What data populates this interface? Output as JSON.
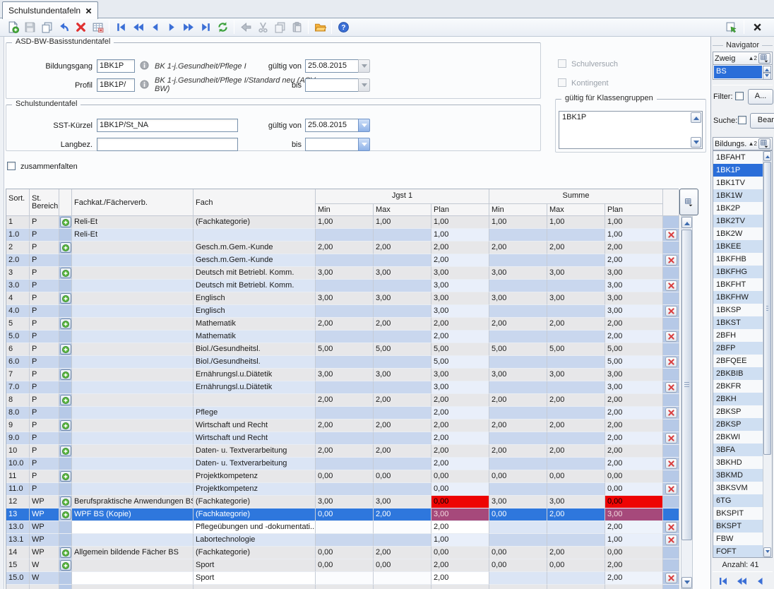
{
  "window": {
    "tab_title": "Schulstundentafeln"
  },
  "toolbar": {
    "icons": [
      {
        "name": "new-record",
        "enabled": true
      },
      {
        "name": "save",
        "enabled": false
      },
      {
        "name": "duplicate",
        "enabled": true
      },
      {
        "name": "undo",
        "enabled": true
      },
      {
        "name": "delete",
        "enabled": true
      },
      {
        "name": "edit-table",
        "enabled": true
      },
      {
        "sep": true
      },
      {
        "name": "nav-first",
        "enabled": true
      },
      {
        "name": "nav-fast-back",
        "enabled": true
      },
      {
        "name": "nav-back",
        "enabled": true
      },
      {
        "name": "nav-forward",
        "enabled": true
      },
      {
        "name": "nav-fast-forward",
        "enabled": true
      },
      {
        "name": "nav-last",
        "enabled": true
      },
      {
        "name": "refresh",
        "enabled": true
      },
      {
        "sep": true
      },
      {
        "name": "assign-back",
        "enabled": false
      },
      {
        "name": "cut",
        "enabled": false
      },
      {
        "name": "copy",
        "enabled": false
      },
      {
        "name": "paste",
        "enabled": false
      },
      {
        "sep": true
      },
      {
        "name": "folder",
        "enabled": true
      },
      {
        "sep": true
      },
      {
        "name": "help",
        "enabled": true
      }
    ],
    "right_icons": [
      {
        "name": "undock",
        "enabled": true
      },
      {
        "sep": true
      },
      {
        "name": "close-window",
        "enabled": true
      }
    ]
  },
  "basis": {
    "legend": "ASD-BW-Basisstundentafel",
    "bildungsgang_label": "Bildungsgang",
    "bildungsgang_value": "1BK1P",
    "bildungsgang_desc": "BK 1-j.Gesundheit/Pflege I",
    "profil_label": "Profil",
    "profil_value": "1BK1P/",
    "profil_desc": "BK 1-j.Gesundheit/Pflege I/Standard neu (ASV-BW)",
    "gueltig_von_label": "gültig von",
    "gueltig_von_value": "25.08.2015",
    "bis_label": "bis",
    "bis_value": "",
    "schulversuch_label": "Schulversuch",
    "kontingent_label": "Kontingent"
  },
  "sst": {
    "legend": "Schulstundentafel",
    "kuerzel_label": "SST-Kürzel",
    "kuerzel_value": "1BK1P/St_NA",
    "langbez_label": "Langbez.",
    "langbez_value": "",
    "gueltig_von_label": "gültig von",
    "gueltig_von_value": "25.08.2015",
    "bis_label": "bis",
    "bis_value": "",
    "klassengruppen_legend": "gültig für Klassengruppen",
    "klassengruppen_items": [
      "1BK1P"
    ]
  },
  "zusammenfalten_label": "zusammenfalten",
  "table": {
    "headers": {
      "sort": "Sort.",
      "bereich_line1": "St.",
      "bereich_line2": "Bereich",
      "fachkat": "Fachkat./Fächerverb.",
      "fach": "Fach",
      "group1": "Jgst 1",
      "group2": "Summe",
      "min": "Min",
      "max": "Max",
      "plan": "Plan"
    },
    "rows": [
      {
        "sort": "1",
        "bereich": "P",
        "plus": true,
        "fachkat": "Reli-Et",
        "fach": "(Fachkategorie)",
        "values": [
          "1,00",
          "1,00",
          "1,00",
          "1,00",
          "1,00",
          "1,00"
        ],
        "kind": "parent",
        "del": false
      },
      {
        "sort": "1.0",
        "bereich": "P",
        "plus": false,
        "fachkat": "Reli-Et",
        "fach": "",
        "values": [
          "",
          "",
          "1,00",
          "",
          "",
          "1,00"
        ],
        "kind": "child",
        "del": true
      },
      {
        "sort": "2",
        "bereich": "P",
        "plus": true,
        "fachkat": "",
        "fach": "Gesch.m.Gem.-Kunde",
        "values": [
          "2,00",
          "2,00",
          "2,00",
          "2,00",
          "2,00",
          "2,00"
        ],
        "kind": "parent",
        "del": false
      },
      {
        "sort": "2.0",
        "bereich": "P",
        "plus": false,
        "fachkat": "",
        "fach": "Gesch.m.Gem.-Kunde",
        "values": [
          "",
          "",
          "2,00",
          "",
          "",
          "2,00"
        ],
        "kind": "child",
        "del": true
      },
      {
        "sort": "3",
        "bereich": "P",
        "plus": true,
        "fachkat": "",
        "fach": "Deutsch mit Betriebl. Komm.",
        "values": [
          "3,00",
          "3,00",
          "3,00",
          "3,00",
          "3,00",
          "3,00"
        ],
        "kind": "parent",
        "del": false
      },
      {
        "sort": "3.0",
        "bereich": "P",
        "plus": false,
        "fachkat": "",
        "fach": "Deutsch mit Betriebl. Komm.",
        "values": [
          "",
          "",
          "3,00",
          "",
          "",
          "3,00"
        ],
        "kind": "child",
        "del": true
      },
      {
        "sort": "4",
        "bereich": "P",
        "plus": true,
        "fachkat": "",
        "fach": "Englisch",
        "values": [
          "3,00",
          "3,00",
          "3,00",
          "3,00",
          "3,00",
          "3,00"
        ],
        "kind": "parent",
        "del": false
      },
      {
        "sort": "4.0",
        "bereich": "P",
        "plus": false,
        "fachkat": "",
        "fach": "Englisch",
        "values": [
          "",
          "",
          "3,00",
          "",
          "",
          "3,00"
        ],
        "kind": "child",
        "del": true
      },
      {
        "sort": "5",
        "bereich": "P",
        "plus": true,
        "fachkat": "",
        "fach": "Mathematik",
        "values": [
          "2,00",
          "2,00",
          "2,00",
          "2,00",
          "2,00",
          "2,00"
        ],
        "kind": "parent",
        "del": false
      },
      {
        "sort": "5.0",
        "bereich": "P",
        "plus": false,
        "fachkat": "",
        "fach": "Mathematik",
        "values": [
          "",
          "",
          "2,00",
          "",
          "",
          "2,00"
        ],
        "kind": "child",
        "del": true
      },
      {
        "sort": "6",
        "bereich": "P",
        "plus": true,
        "fachkat": "",
        "fach": "Biol./Gesundheitsl.",
        "values": [
          "5,00",
          "5,00",
          "5,00",
          "5,00",
          "5,00",
          "5,00"
        ],
        "kind": "parent",
        "del": false
      },
      {
        "sort": "6.0",
        "bereich": "P",
        "plus": false,
        "fachkat": "",
        "fach": "Biol./Gesundheitsl.",
        "values": [
          "",
          "",
          "5,00",
          "",
          "",
          "5,00"
        ],
        "kind": "child",
        "del": true
      },
      {
        "sort": "7",
        "bereich": "P",
        "plus": true,
        "fachkat": "",
        "fach": "Ernährungsl.u.Diätetik",
        "values": [
          "3,00",
          "3,00",
          "3,00",
          "3,00",
          "3,00",
          "3,00"
        ],
        "kind": "parent",
        "del": false
      },
      {
        "sort": "7.0",
        "bereich": "P",
        "plus": false,
        "fachkat": "",
        "fach": "Ernährungsl.u.Diätetik",
        "values": [
          "",
          "",
          "3,00",
          "",
          "",
          "3,00"
        ],
        "kind": "child",
        "del": true
      },
      {
        "sort": "8",
        "bereich": "P",
        "plus": true,
        "fachkat": "",
        "fach": "",
        "values": [
          "2,00",
          "2,00",
          "2,00",
          "2,00",
          "2,00",
          "2,00"
        ],
        "kind": "parent",
        "del": false
      },
      {
        "sort": "8.0",
        "bereich": "P",
        "plus": false,
        "fachkat": "",
        "fach": "Pflege",
        "values": [
          "",
          "",
          "2,00",
          "",
          "",
          "2,00"
        ],
        "kind": "child",
        "del": true
      },
      {
        "sort": "9",
        "bereich": "P",
        "plus": true,
        "fachkat": "",
        "fach": "Wirtschaft und Recht",
        "values": [
          "2,00",
          "2,00",
          "2,00",
          "2,00",
          "2,00",
          "2,00"
        ],
        "kind": "parent",
        "del": false
      },
      {
        "sort": "9.0",
        "bereich": "P",
        "plus": false,
        "fachkat": "",
        "fach": "Wirtschaft und Recht",
        "values": [
          "",
          "",
          "2,00",
          "",
          "",
          "2,00"
        ],
        "kind": "child",
        "del": true
      },
      {
        "sort": "10",
        "bereich": "P",
        "plus": true,
        "fachkat": "",
        "fach": "Daten- u. Textverarbeitung",
        "values": [
          "2,00",
          "2,00",
          "2,00",
          "2,00",
          "2,00",
          "2,00"
        ],
        "kind": "parent",
        "del": false
      },
      {
        "sort": "10.0",
        "bereich": "P",
        "plus": false,
        "fachkat": "",
        "fach": "Daten- u. Textverarbeitung",
        "values": [
          "",
          "",
          "2,00",
          "",
          "",
          "2,00"
        ],
        "kind": "child",
        "del": true
      },
      {
        "sort": "11",
        "bereich": "P",
        "plus": true,
        "fachkat": "",
        "fach": "Projektkompetenz",
        "values": [
          "0,00",
          "0,00",
          "0,00",
          "0,00",
          "0,00",
          "0,00"
        ],
        "kind": "parent",
        "del": false
      },
      {
        "sort": "11.0",
        "bereich": "P",
        "plus": false,
        "fachkat": "",
        "fach": "Projektkompetenz",
        "values": [
          "",
          "",
          "0,00",
          "",
          "",
          "0,00"
        ],
        "kind": "child",
        "del": true
      },
      {
        "sort": "12",
        "bereich": "WP",
        "plus": true,
        "fachkat": "Berufspraktische Anwendungen BS",
        "fach": "(Fachkategorie)",
        "values": [
          "3,00",
          "3,00",
          "0,00",
          "3,00",
          "3,00",
          "0,00"
        ],
        "kind": "parent",
        "del": false,
        "plan_red": true
      },
      {
        "sort": "13",
        "bereich": "WP",
        "plus": true,
        "fachkat": "WPF BS (Kopie)",
        "fach": "(Fachkategorie)",
        "values": [
          "0,00",
          "2,00",
          "3,00",
          "0,00",
          "2,00",
          "3,00"
        ],
        "kind": "parent",
        "del": false,
        "plan_red": true,
        "selected": true
      },
      {
        "sort": "13.0",
        "bereich": "WP",
        "plus": false,
        "fachkat": "",
        "fach": "Pflegeübungen und -dokumentati...",
        "values": [
          "",
          "",
          "2,00",
          "",
          "",
          "2,00"
        ],
        "kind": "childw",
        "del": true
      },
      {
        "sort": "13.1",
        "bereich": "WP",
        "plus": false,
        "fachkat": "",
        "fach": "Labortechnologie",
        "values": [
          "",
          "",
          "1,00",
          "",
          "",
          "1,00"
        ],
        "kind": "child",
        "del": true
      },
      {
        "sort": "14",
        "bereich": "WP",
        "plus": true,
        "fachkat": "Allgemein bildende Fächer BS",
        "fach": "(Fachkategorie)",
        "values": [
          "0,00",
          "2,00",
          "0,00",
          "0,00",
          "2,00",
          "0,00"
        ],
        "kind": "parent",
        "del": false
      },
      {
        "sort": "15",
        "bereich": "W",
        "plus": true,
        "fachkat": "",
        "fach": "Sport",
        "values": [
          "0,00",
          "0,00",
          "2,00",
          "0,00",
          "0,00",
          "2,00"
        ],
        "kind": "parent",
        "del": false
      },
      {
        "sort": "15.0",
        "bereich": "W",
        "plus": false,
        "fachkat": "",
        "fach": "Sport",
        "values": [
          "",
          "",
          "2,00",
          "",
          "",
          "2,00"
        ],
        "kind": "childw",
        "del": true
      },
      {
        "sort": "",
        "bereich": "",
        "plus": false,
        "fachkat": "",
        "fach": "",
        "values": [
          "",
          "",
          "",
          "",
          "",
          ""
        ],
        "kind": "parent",
        "del": false
      }
    ]
  },
  "navigator": {
    "legend": "Navigator",
    "zweig_header": "Zweig",
    "zweig_sort": "2",
    "zweig_selected": "BS",
    "filter_label": "Filter:",
    "filter_button": "A...",
    "suche_label": "Suche:",
    "suche_button": "Bearb...",
    "list_header": "Bildungs...",
    "list_sort": "2",
    "selected_index": 1,
    "items": [
      "1BFAHT",
      "1BK1P",
      "1BK1TV",
      "1BK1W",
      "1BK2P",
      "1BK2TV",
      "1BK2W",
      "1BKEE",
      "1BKFHB",
      "1BKFHG",
      "1BKFHT",
      "1BKFHW",
      "1BKSP",
      "1BKST",
      "2BFH",
      "2BFP",
      "2BFQEE",
      "2BKBIB",
      "2BKFR",
      "2BKH",
      "2BKSP",
      "2BKSP",
      "2BKWI",
      "3BFA",
      "3BKHD",
      "3BKMD",
      "3BKSVM",
      "6TG",
      "BKSPIT",
      "BKSPT",
      "FBW",
      "FOFT"
    ],
    "anzahl": "Anzahl: 41",
    "bottom_nav": [
      "nav-first",
      "nav-fast-back",
      "nav-back"
    ]
  }
}
